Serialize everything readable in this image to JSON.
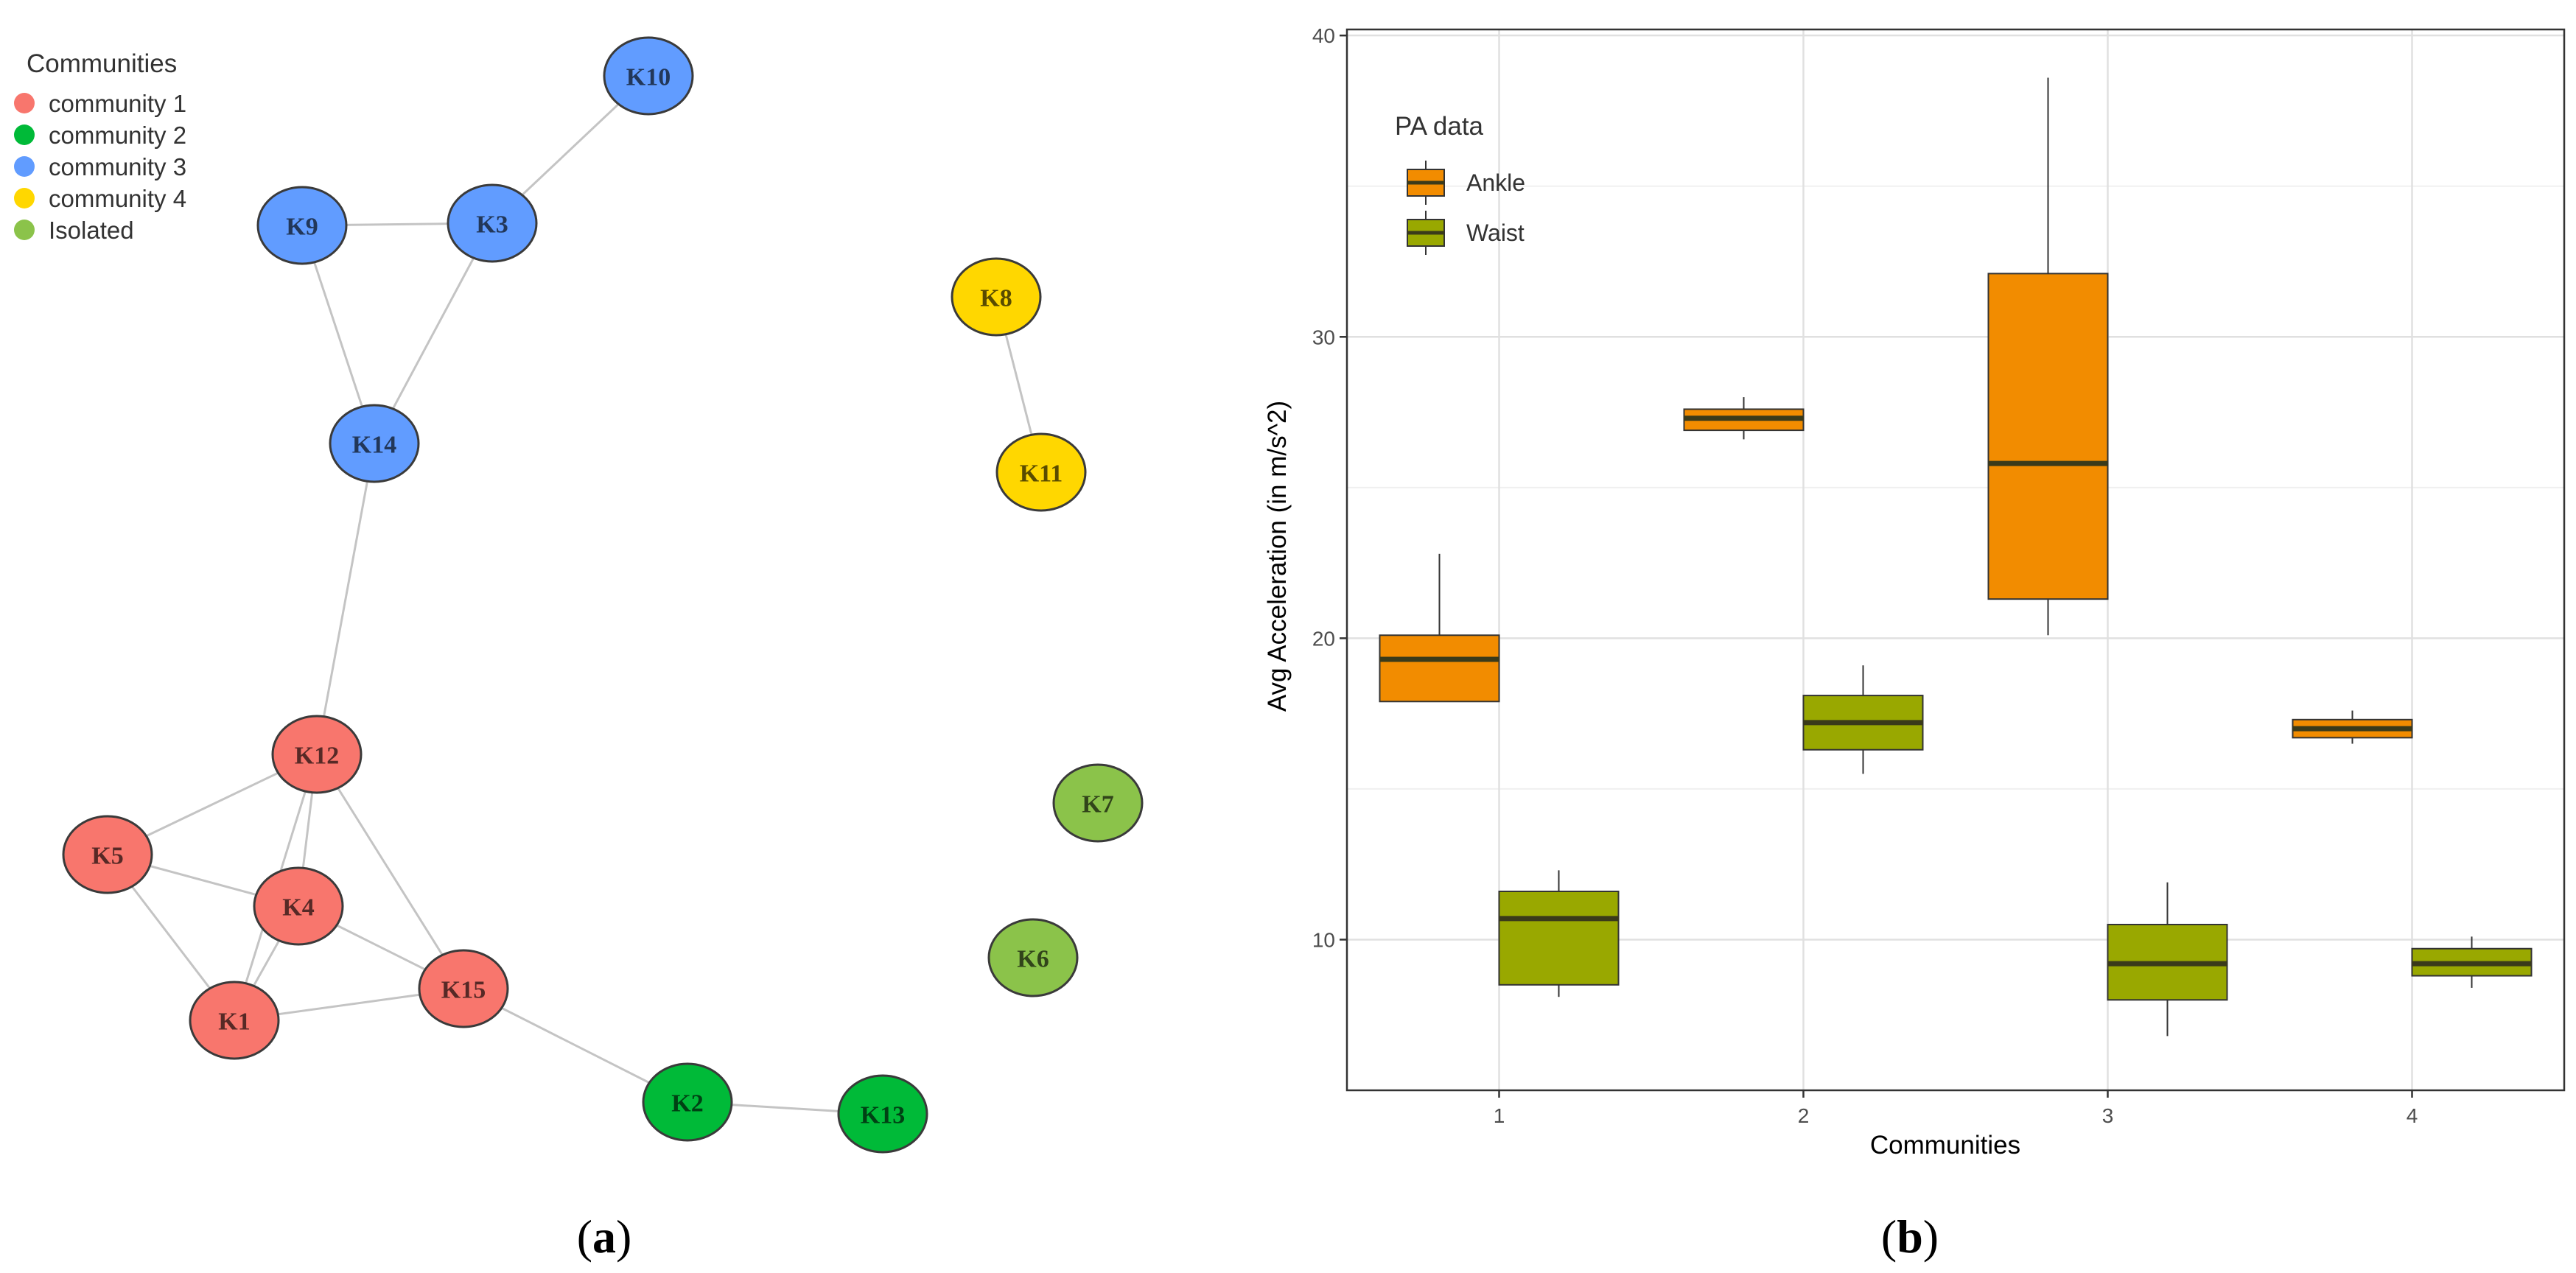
{
  "panel_a": {
    "label_open": "(",
    "label_letter": "a",
    "label_close": ")",
    "legend_title": "Communities",
    "legend": [
      {
        "name": "community 1",
        "color": "#F8766D"
      },
      {
        "name": "community 2",
        "color": "#00BA38"
      },
      {
        "name": "community 3",
        "color": "#619CFF"
      },
      {
        "name": "community 4",
        "color": "#FFD700"
      },
      {
        "name": "Isolated",
        "color": "#8BC34A"
      }
    ],
    "nodes": [
      {
        "id": "K1",
        "group": "community 1"
      },
      {
        "id": "K2",
        "group": "community 2"
      },
      {
        "id": "K3",
        "group": "community 3"
      },
      {
        "id": "K4",
        "group": "community 1"
      },
      {
        "id": "K5",
        "group": "community 1"
      },
      {
        "id": "K6",
        "group": "Isolated"
      },
      {
        "id": "K7",
        "group": "Isolated"
      },
      {
        "id": "K8",
        "group": "community 4"
      },
      {
        "id": "K9",
        "group": "community 3"
      },
      {
        "id": "K10",
        "group": "community 3"
      },
      {
        "id": "K11",
        "group": "community 4"
      },
      {
        "id": "K12",
        "group": "community 1"
      },
      {
        "id": "K13",
        "group": "community 2"
      },
      {
        "id": "K14",
        "group": "community 3"
      },
      {
        "id": "K15",
        "group": "community 1"
      }
    ],
    "edges": [
      [
        "K10",
        "K3"
      ],
      [
        "K9",
        "K3"
      ],
      [
        "K9",
        "K14"
      ],
      [
        "K3",
        "K14"
      ],
      [
        "K14",
        "K12"
      ],
      [
        "K8",
        "K11"
      ],
      [
        "K12",
        "K5"
      ],
      [
        "K12",
        "K4"
      ],
      [
        "K12",
        "K1"
      ],
      [
        "K12",
        "K15"
      ],
      [
        "K5",
        "K4"
      ],
      [
        "K5",
        "K1"
      ],
      [
        "K4",
        "K1"
      ],
      [
        "K4",
        "K15"
      ],
      [
        "K1",
        "K15"
      ],
      [
        "K15",
        "K2"
      ],
      [
        "K2",
        "K13"
      ]
    ]
  },
  "panel_b": {
    "label_open": "(",
    "label_letter": "b",
    "label_close": ")",
    "chart_data": {
      "type": "boxplot",
      "xlabel": "Communities",
      "ylabel": "Avg Acceleration (in m/s^2)",
      "categories": [
        "1",
        "2",
        "3",
        "4"
      ],
      "ylim": [
        5.0,
        40.2
      ],
      "yticks": [
        10,
        20,
        30,
        40
      ],
      "grid": true,
      "legend_title": "PA data",
      "legend_position": "top-left",
      "series": [
        {
          "name": "Ankle",
          "color": "#F28C00",
          "boxes": [
            {
              "category": "1",
              "whisker_low": 17.9,
              "q1": 17.9,
              "median": 19.3,
              "q3": 20.1,
              "whisker_high": 22.8
            },
            {
              "category": "2",
              "whisker_low": 26.6,
              "q1": 26.9,
              "median": 27.3,
              "q3": 27.6,
              "whisker_high": 28.0
            },
            {
              "category": "3",
              "whisker_low": 20.1,
              "q1": 21.3,
              "median": 25.8,
              "q3": 32.1,
              "whisker_high": 38.6
            },
            {
              "category": "4",
              "whisker_low": 16.5,
              "q1": 16.7,
              "median": 17.0,
              "q3": 17.3,
              "whisker_high": 17.6
            }
          ]
        },
        {
          "name": "Waist",
          "color": "#99A800",
          "boxes": [
            {
              "category": "1",
              "whisker_low": 8.1,
              "q1": 8.5,
              "median": 10.7,
              "q3": 11.6,
              "whisker_high": 12.3
            },
            {
              "category": "2",
              "whisker_low": 15.5,
              "q1": 16.3,
              "median": 17.2,
              "q3": 18.1,
              "whisker_high": 19.1
            },
            {
              "category": "3",
              "whisker_low": 6.8,
              "q1": 8.0,
              "median": 9.2,
              "q3": 10.5,
              "whisker_high": 11.9
            },
            {
              "category": "4",
              "whisker_low": 8.4,
              "q1": 8.8,
              "median": 9.2,
              "q3": 9.7,
              "whisker_high": 10.1
            }
          ]
        }
      ]
    }
  }
}
